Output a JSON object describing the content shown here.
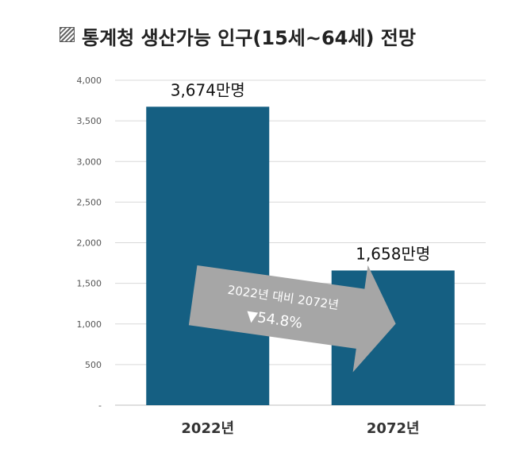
{
  "title": "통계청 생산가능 인구(15세~64세) 전망",
  "chart_data": {
    "type": "bar",
    "title": "통계청 생산가능 인구(15세~64세) 전망",
    "categories": [
      "2022년",
      "2072년"
    ],
    "values": [
      3674,
      1658
    ],
    "data_labels": [
      "3,674만명",
      "1,658만명"
    ],
    "ylim": [
      0,
      4000
    ],
    "yticks": [
      "-",
      "500",
      "1,000",
      "1,500",
      "2,000",
      "2,500",
      "3,000",
      "3,500",
      "4,000"
    ],
    "grid": true,
    "bar_color": "#155f82",
    "annotation": {
      "line1": "2022년 대비 2072년",
      "line2": "▼54.8%",
      "color": "#a6a6a6"
    }
  }
}
